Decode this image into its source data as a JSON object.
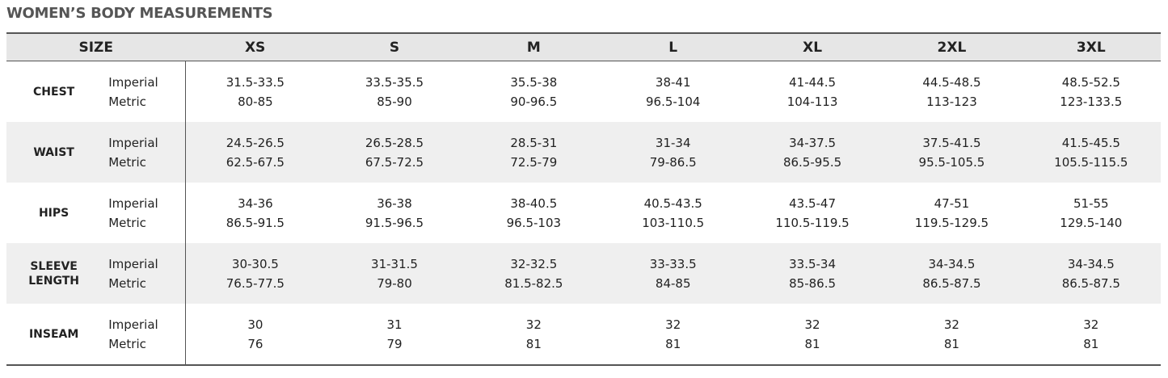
{
  "title": "WOMEN’S BODY MEASUREMENTS",
  "table": {
    "header": [
      "SIZE",
      "XS",
      "S",
      "M",
      "L",
      "XL",
      "2XL",
      "3XL"
    ],
    "rows": [
      {
        "label": "CHEST",
        "units": [
          "Imperial",
          "Metric"
        ],
        "imperial": [
          "31.5-33.5",
          "33.5-35.5",
          "35.5-38",
          "38-41",
          "41-44.5",
          "44.5-48.5",
          "48.5-52.5"
        ],
        "metric": [
          "80-85",
          "85-90",
          "90-96.5",
          "96.5-104",
          "104-113",
          "113-123",
          "123-133.5"
        ]
      },
      {
        "label": "WAIST",
        "units": [
          "Imperial",
          "Metric"
        ],
        "imperial": [
          "24.5-26.5",
          "26.5-28.5",
          "28.5-31",
          "31-34",
          "34-37.5",
          "37.5-41.5",
          "41.5-45.5"
        ],
        "metric": [
          "62.5-67.5",
          "67.5-72.5",
          "72.5-79",
          "79-86.5",
          "86.5-95.5",
          "95.5-105.5",
          "105.5-115.5"
        ]
      },
      {
        "label": "HIPS",
        "units": [
          "Imperial",
          "Metric"
        ],
        "imperial": [
          "34-36",
          "36-38",
          "38-40.5",
          "40.5-43.5",
          "43.5-47",
          "47-51",
          "51-55"
        ],
        "metric": [
          "86.5-91.5",
          "91.5-96.5",
          "96.5-103",
          "103-110.5",
          "110.5-119.5",
          "119.5-129.5",
          "129.5-140"
        ]
      },
      {
        "label": "SLEEVE LENGTH",
        "units": [
          "Imperial",
          "Metric"
        ],
        "imperial": [
          "30-30.5",
          "31-31.5",
          "32-32.5",
          "33-33.5",
          "33.5-34",
          "34-34.5",
          "34-34.5"
        ],
        "metric": [
          "76.5-77.5",
          "79-80",
          "81.5-82.5",
          "84-85",
          "85-86.5",
          "86.5-87.5",
          "86.5-87.5"
        ]
      },
      {
        "label": "INSEAM",
        "units": [
          "Imperial",
          "Metric"
        ],
        "imperial": [
          "30",
          "31",
          "32",
          "32",
          "32",
          "32",
          "32"
        ],
        "metric": [
          "76",
          "79",
          "81",
          "81",
          "81",
          "81",
          "81"
        ]
      }
    ]
  }
}
